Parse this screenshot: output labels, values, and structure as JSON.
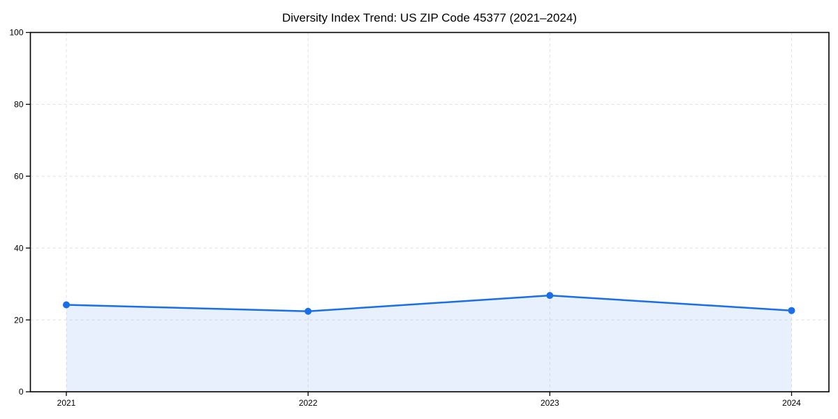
{
  "chart_data": {
    "type": "area",
    "title": "Diversity Index Trend: US ZIP Code 45377 (2021–2024)",
    "categories": [
      "2021",
      "2022",
      "2023",
      "2024"
    ],
    "series": [
      {
        "name": "Diversity Index",
        "values": [
          24.2,
          22.4,
          26.8,
          22.6
        ]
      }
    ],
    "xlabel": "",
    "ylabel": "",
    "ylim": [
      0,
      100
    ],
    "yticks": [
      0,
      20,
      40,
      60,
      80,
      100
    ],
    "grid": true,
    "grid_style": "dashed",
    "legend": "none",
    "marker": "circle",
    "colors": {
      "line": "#1a6fe8",
      "fill": "rgba(26,111,232,0.10)",
      "grid": "#e1e1e1",
      "axis": "#000000",
      "tick_text": "#000000",
      "title_text": "#000000",
      "background": "#ffffff"
    }
  }
}
